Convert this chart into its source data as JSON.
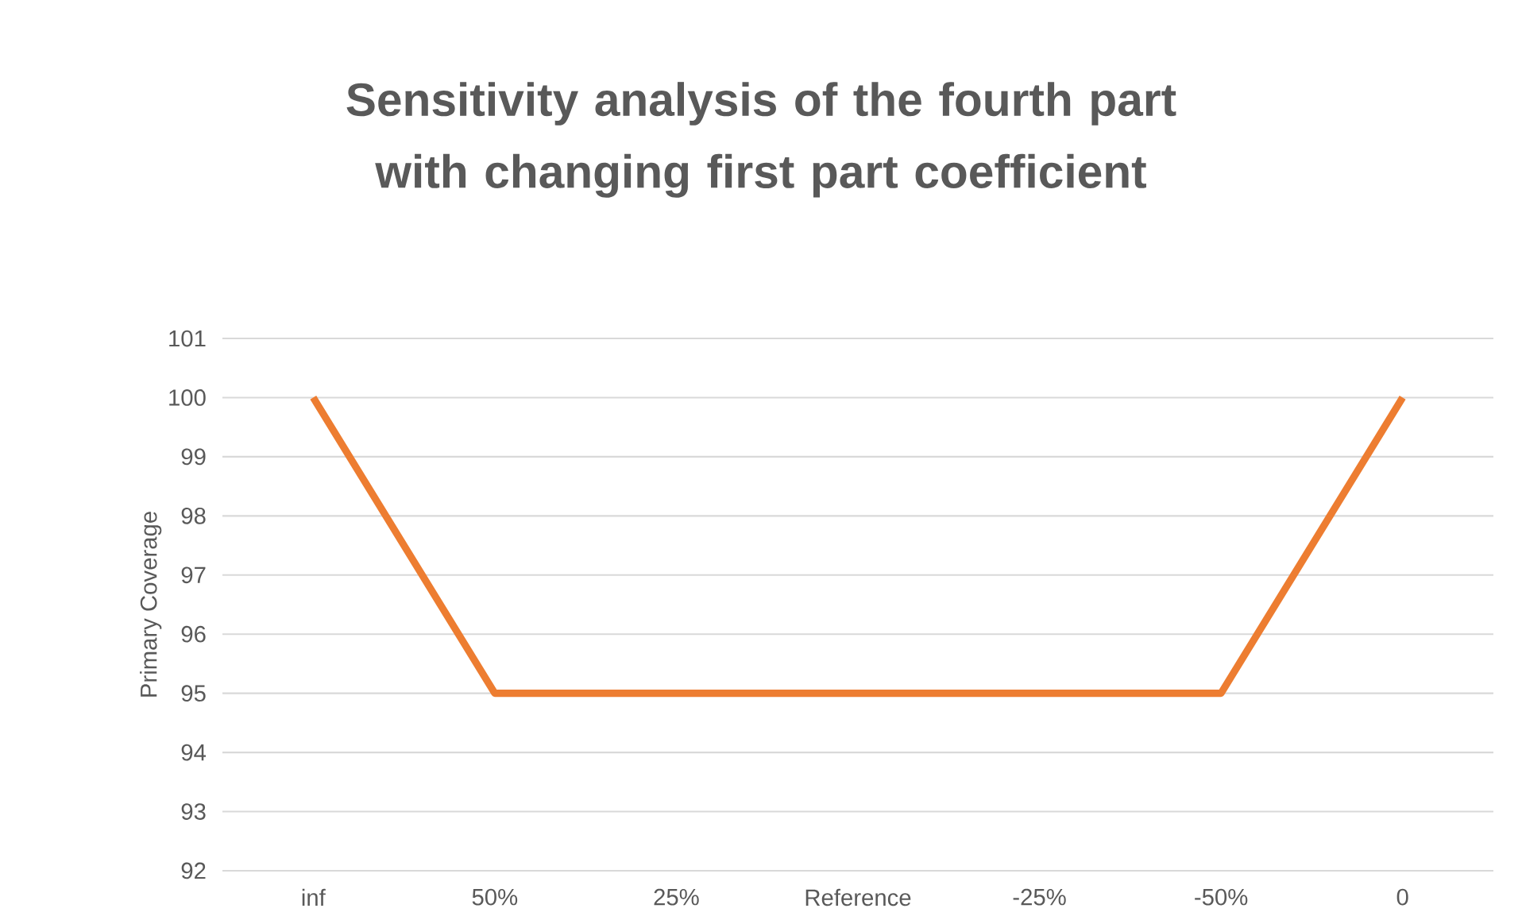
{
  "chart_data": {
    "type": "line",
    "title": "Sensitivity analysis of the fourth part with changing first part coefficient",
    "ylabel": "Primary Coverage",
    "categories": [
      "inf",
      "50%",
      "25%",
      "Reference",
      "-25%",
      "-50%",
      "0"
    ],
    "series": [
      {
        "color": "#ed7d31",
        "values": [
          100,
          95,
          95,
          95,
          95,
          95,
          100
        ]
      }
    ],
    "ylim": [
      92,
      101
    ],
    "yticks": [
      92,
      93,
      94,
      95,
      96,
      97,
      98,
      99,
      100,
      101
    ],
    "grid": "y"
  }
}
